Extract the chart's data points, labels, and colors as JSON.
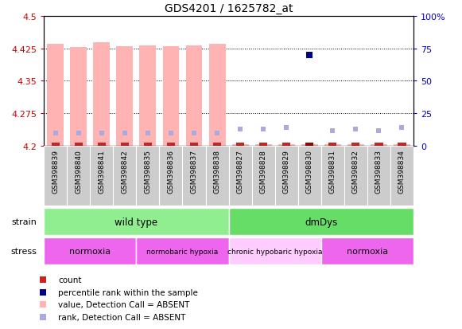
{
  "title": "GDS4201 / 1625782_at",
  "samples": [
    "GSM398839",
    "GSM398840",
    "GSM398841",
    "GSM398842",
    "GSM398835",
    "GSM398836",
    "GSM398837",
    "GSM398838",
    "GSM398827",
    "GSM398828",
    "GSM398829",
    "GSM398830",
    "GSM398831",
    "GSM398832",
    "GSM398833",
    "GSM398834"
  ],
  "value_heights": [
    4.435,
    4.428,
    4.438,
    4.43,
    4.432,
    4.43,
    4.432,
    4.435,
    4.204,
    4.204,
    4.204,
    4.204,
    4.204,
    4.204,
    4.204,
    4.204
  ],
  "rank_pct": [
    10,
    10,
    10,
    10,
    10,
    10,
    10,
    10,
    13,
    13,
    14,
    70,
    12,
    13,
    12,
    14
  ],
  "rank_absent": [
    true,
    true,
    true,
    true,
    true,
    true,
    true,
    true,
    true,
    true,
    true,
    false,
    true,
    true,
    true,
    true
  ],
  "count_present": [
    false,
    false,
    false,
    false,
    false,
    false,
    false,
    false,
    false,
    false,
    false,
    true,
    false,
    false,
    false,
    false
  ],
  "ylim_left": [
    4.2,
    4.5
  ],
  "ylim_right": [
    0,
    100
  ],
  "yticks_left": [
    4.2,
    4.275,
    4.35,
    4.425,
    4.5
  ],
  "yticks_right": [
    0,
    25,
    50,
    75,
    100
  ],
  "strain_groups": [
    {
      "label": "wild type",
      "start": 0,
      "end": 8,
      "color": "#90EE90"
    },
    {
      "label": "dmDys",
      "start": 8,
      "end": 16,
      "color": "#66DD66"
    }
  ],
  "stress_groups": [
    {
      "label": "normoxia",
      "start": 0,
      "end": 4,
      "color": "#EE66EE"
    },
    {
      "label": "normobaric hypoxia",
      "start": 4,
      "end": 8,
      "color": "#EE66EE"
    },
    {
      "label": "chronic hypobaric hypoxia",
      "start": 8,
      "end": 12,
      "color": "#FFCCFF"
    },
    {
      "label": "normoxia",
      "start": 12,
      "end": 16,
      "color": "#EE66EE"
    }
  ],
  "color_val_absent": "#FFB3B3",
  "color_rank_absent": "#AAAADD",
  "color_rank_present": "#00008B",
  "color_count_absent": "#CC2222",
  "color_count_present": "#990000",
  "color_left_axis": "#CC0000",
  "color_right_axis": "#0000CC",
  "sample_box_color": "#CCCCCC",
  "legend_items": [
    {
      "color": "#CC2222",
      "label": "count"
    },
    {
      "color": "#00008B",
      "label": "percentile rank within the sample"
    },
    {
      "color": "#FFB3B3",
      "label": "value, Detection Call = ABSENT"
    },
    {
      "color": "#AAAADD",
      "label": "rank, Detection Call = ABSENT"
    }
  ]
}
